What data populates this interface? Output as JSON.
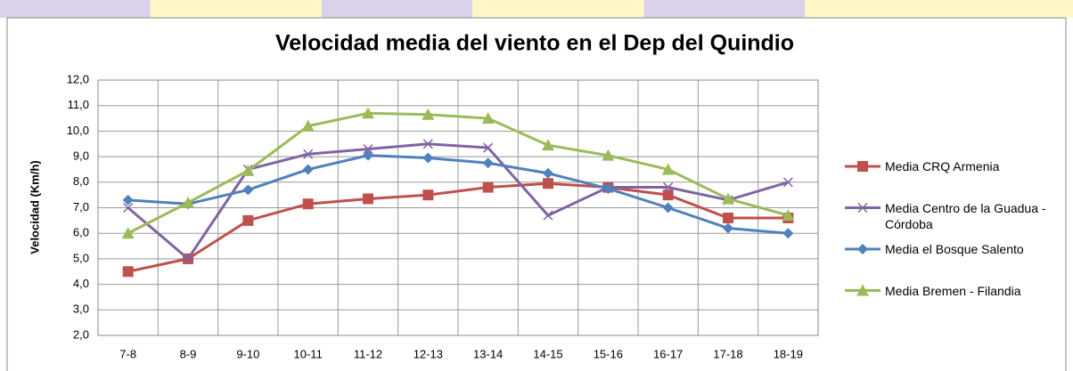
{
  "chart_data": {
    "type": "line",
    "title": "Velocidad media del viento en el Dep del Quindio",
    "y_label": "Velocidad  (Km/h)",
    "categories": [
      "7-8",
      "8-9",
      "9-10",
      "10-11",
      "11-12",
      "12-13",
      "13-14",
      "14-15",
      "15-16",
      "16-17",
      "17-18",
      "18-19"
    ],
    "series": [
      {
        "name": "Media CRQ Armenia",
        "color": "#c0504d",
        "marker": "square",
        "values": [
          4.5,
          5.0,
          6.5,
          7.15,
          7.35,
          7.5,
          7.8,
          7.95,
          7.8,
          7.5,
          6.6,
          6.6
        ]
      },
      {
        "name": "Media Centro de la Guadua - Córdoba",
        "color": "#8064a2",
        "marker": "x",
        "values": [
          7.0,
          5.0,
          8.5,
          9.1,
          9.3,
          9.5,
          9.35,
          6.7,
          7.8,
          7.8,
          7.3,
          8.0
        ]
      },
      {
        "name": "Media el Bosque Salento",
        "color": "#4f81bd",
        "marker": "diamond",
        "values": [
          7.3,
          7.15,
          7.7,
          8.5,
          9.05,
          8.95,
          8.75,
          8.35,
          7.75,
          7.0,
          6.2,
          6.0
        ]
      },
      {
        "name": "Media Bremen - Filandia",
        "color": "#9bbb59",
        "marker": "triangle",
        "values": [
          6.0,
          7.2,
          8.45,
          10.2,
          10.7,
          10.65,
          10.5,
          9.45,
          9.05,
          8.5,
          7.35,
          6.7
        ]
      }
    ],
    "ylim": [
      2,
      12
    ],
    "yticks": [
      {
        "value": 2,
        "label": "2,0"
      },
      {
        "value": 3,
        "label": "3,0"
      },
      {
        "value": 4,
        "label": "4,0"
      },
      {
        "value": 5,
        "label": "5,0"
      },
      {
        "value": 6,
        "label": "6,0"
      },
      {
        "value": 7,
        "label": "7,0"
      },
      {
        "value": 8,
        "label": "8,0"
      },
      {
        "value": 9,
        "label": "9,0"
      },
      {
        "value": 10,
        "label": "10,0"
      },
      {
        "value": 11,
        "label": "11,0"
      },
      {
        "value": 12,
        "label": "12,0"
      }
    ],
    "grid": true,
    "legend": "right"
  }
}
